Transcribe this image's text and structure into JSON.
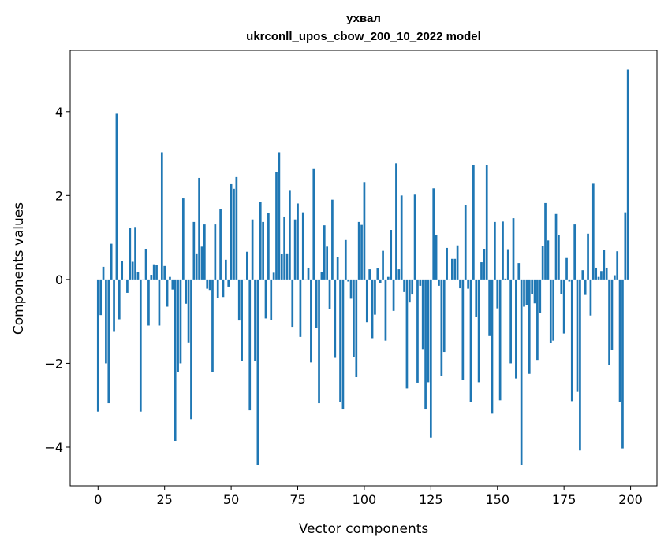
{
  "chart_data": {
    "type": "bar",
    "title_line1": "ухвал",
    "title_line2": "ukrconll_upos_cbow_200_10_2022 model",
    "xlabel": "Vector components",
    "ylabel": "Components values",
    "xlim": [
      -10.45,
      209.9
    ],
    "ylim": [
      -4.92,
      5.46
    ],
    "xticks": [
      0,
      25,
      50,
      75,
      100,
      125,
      150,
      175,
      200
    ],
    "yticks": [
      -4,
      -2,
      0,
      2,
      4
    ],
    "ytick_labels": [
      "−4",
      "−2",
      "0",
      "2",
      "4"
    ],
    "bar_color": "#1f77b4",
    "grid": false,
    "values": [
      -3.15,
      -0.85,
      0.3,
      -2.0,
      -2.95,
      0.85,
      -1.25,
      3.95,
      -0.95,
      0.43,
      0,
      -0.32,
      1.22,
      0.42,
      1.25,
      0.17,
      -3.15,
      0,
      0.73,
      -1.1,
      0.11,
      0.36,
      0.34,
      -1.1,
      3.03,
      0.32,
      -0.65,
      0.06,
      -0.24,
      -3.85,
      -2.2,
      -2.0,
      1.93,
      -0.58,
      -1.5,
      -3.33,
      1.37,
      0.62,
      2.42,
      0.78,
      1.31,
      -0.22,
      -0.25,
      -2.2,
      1.31,
      -0.45,
      1.67,
      -0.42,
      0.47,
      -0.17,
      2.27,
      2.16,
      2.44,
      -0.98,
      -1.95,
      0,
      0.66,
      -3.12,
      1.43,
      -1.95,
      -4.43,
      1.85,
      1.37,
      -0.93,
      1.58,
      -0.97,
      0.16,
      2.56,
      3.03,
      0.6,
      1.5,
      0.62,
      2.13,
      -1.13,
      1.43,
      1.81,
      -1.37,
      1.6,
      0,
      0.28,
      -1.98,
      2.63,
      -1.15,
      -2.95,
      0.17,
      1.29,
      0.78,
      -0.71,
      1.9,
      -1.87,
      0.53,
      -2.93,
      -3.1,
      0.94,
      -0.05,
      -0.46,
      -1.85,
      -2.33,
      1.37,
      1.3,
      2.32,
      -1.02,
      0.24,
      -1.4,
      -0.84,
      0.26,
      -0.08,
      0.68,
      -1.46,
      0.06,
      1.18,
      -0.75,
      2.77,
      0.24,
      2.0,
      -0.3,
      -2.6,
      -0.55,
      -0.36,
      2.02,
      -2.46,
      -0.15,
      -1.66,
      -3.1,
      -2.45,
      -3.77,
      2.17,
      1.05,
      -0.15,
      -2.3,
      -1.73,
      0.75,
      0,
      0.49,
      0.49,
      0.81,
      -0.21,
      -2.4,
      1.78,
      -0.22,
      -2.93,
      2.73,
      -0.9,
      -2.45,
      0.41,
      0.73,
      2.73,
      -1.35,
      -3.2,
      1.37,
      -0.69,
      -2.88,
      1.38,
      0.02,
      0.72,
      -2.0,
      1.46,
      -2.36,
      0.39,
      -4.42,
      -0.65,
      -0.62,
      -2.25,
      -0.34,
      -0.57,
      -1.92,
      -0.8,
      0.79,
      1.82,
      0.93,
      -1.52,
      -1.46,
      1.56,
      1.05,
      -0.35,
      -1.29,
      0.51,
      -0.05,
      -2.9,
      1.31,
      -2.68,
      -4.08,
      0.22,
      -0.37,
      1.09,
      -0.86,
      2.28,
      0.28,
      0.06,
      0.2,
      0.71,
      0.28,
      -2.03,
      -1.68,
      0.1,
      0.67,
      -2.93,
      -4.03,
      1.6,
      5.0
    ]
  }
}
